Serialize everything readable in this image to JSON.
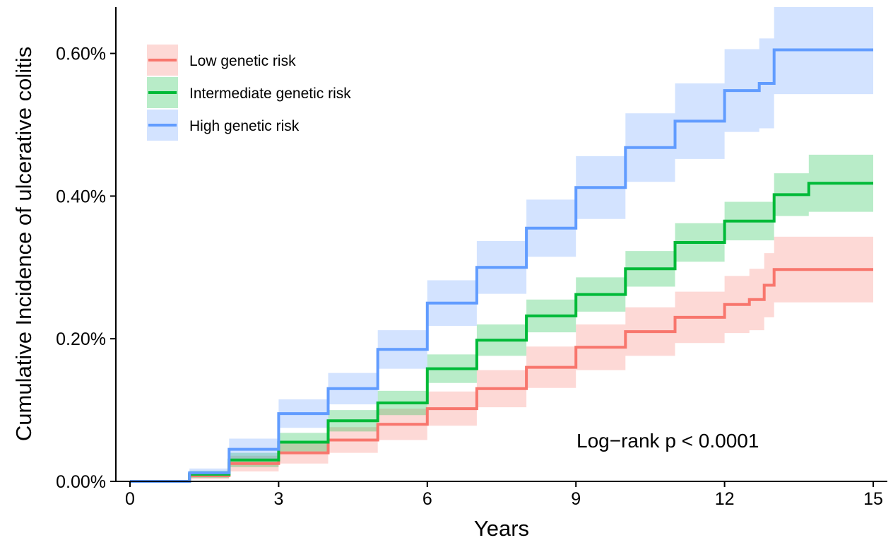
{
  "chart_data": {
    "type": "line",
    "xlabel": "Years",
    "ylabel": "Cumulative Incidence of ulcerative colitis",
    "xlim": [
      0,
      15
    ],
    "ylim": [
      0,
      0.00665
    ],
    "x_ticks": [
      0,
      3,
      6,
      9,
      12,
      15
    ],
    "x_tick_labels": [
      "0",
      "3",
      "6",
      "9",
      "12",
      "15"
    ],
    "y_ticks": [
      0,
      0.002,
      0.004,
      0.006
    ],
    "y_tick_labels": [
      "0.00%",
      "0.20%",
      "0.40%",
      "0.60%"
    ],
    "grid": false,
    "legend_position": "top-left",
    "annotation": "Log−rank   p < 0.0001",
    "series": [
      {
        "name": "Low genetic risk",
        "color": "#F8766D",
        "band_color": "#F8766D",
        "x": [
          0,
          1.0,
          1.2,
          2,
          3,
          4,
          5,
          6,
          7,
          8,
          9,
          10,
          11,
          12,
          12.5,
          12.8,
          13,
          15
        ],
        "y": [
          0,
          0,
          8e-05,
          0.00025,
          0.0004,
          0.00058,
          0.0008,
          0.00102,
          0.0013,
          0.0016,
          0.00188,
          0.0021,
          0.0023,
          0.00248,
          0.00255,
          0.00275,
          0.00297,
          0.00297
        ],
        "lower": [
          0,
          0,
          3e-05,
          0.00014,
          0.00025,
          0.0004,
          0.00058,
          0.00078,
          0.00104,
          0.00131,
          0.00156,
          0.00176,
          0.00194,
          0.00208,
          0.00212,
          0.0023,
          0.00251,
          0.00251
        ],
        "upper": [
          0,
          0,
          0.00013,
          0.00036,
          0.00055,
          0.00076,
          0.00102,
          0.00126,
          0.00156,
          0.00189,
          0.0022,
          0.00244,
          0.00266,
          0.00288,
          0.00298,
          0.0032,
          0.00343,
          0.00343
        ]
      },
      {
        "name": "Intermediate genetic risk",
        "color": "#00BA38",
        "band_color": "#00BA38",
        "x": [
          0,
          1.0,
          1.2,
          2,
          3,
          4,
          5,
          6,
          7,
          8,
          9,
          10,
          11,
          12,
          13,
          13.7,
          15
        ],
        "y": [
          0,
          0,
          0.0001,
          0.0003,
          0.00055,
          0.00085,
          0.0011,
          0.00158,
          0.00198,
          0.00232,
          0.00262,
          0.00298,
          0.00335,
          0.00365,
          0.00402,
          0.00418,
          0.00418
        ],
        "lower": [
          0,
          0,
          5e-05,
          0.0002,
          0.00042,
          0.0007,
          0.00093,
          0.00138,
          0.00176,
          0.00209,
          0.00238,
          0.00273,
          0.00308,
          0.00338,
          0.00372,
          0.00378,
          0.00378
        ],
        "upper": [
          0,
          0,
          0.00015,
          0.0004,
          0.00068,
          0.001,
          0.00127,
          0.00178,
          0.0022,
          0.00255,
          0.00286,
          0.00323,
          0.00362,
          0.00392,
          0.00432,
          0.00458,
          0.00458
        ]
      },
      {
        "name": "High genetic risk",
        "color": "#619CFF",
        "band_color": "#619CFF",
        "x": [
          0,
          1.0,
          1.2,
          2,
          3,
          4,
          5,
          6,
          7,
          8,
          9,
          10,
          11,
          12,
          12.7,
          13,
          15
        ],
        "y": [
          0,
          0,
          0.00012,
          0.00045,
          0.00095,
          0.0013,
          0.00185,
          0.0025,
          0.003,
          0.00355,
          0.00412,
          0.00468,
          0.00505,
          0.00548,
          0.00558,
          0.00605,
          0.00605
        ],
        "lower": [
          0,
          0,
          6e-05,
          0.0003,
          0.00075,
          0.00108,
          0.00158,
          0.00218,
          0.00263,
          0.00315,
          0.00368,
          0.0042,
          0.00452,
          0.0049,
          0.00495,
          0.00543,
          0.00543
        ],
        "upper": [
          0,
          0,
          0.00018,
          0.0006,
          0.00115,
          0.00152,
          0.00212,
          0.00282,
          0.00337,
          0.00395,
          0.00456,
          0.00516,
          0.00558,
          0.00606,
          0.00621,
          0.00665,
          0.00665
        ]
      }
    ]
  }
}
